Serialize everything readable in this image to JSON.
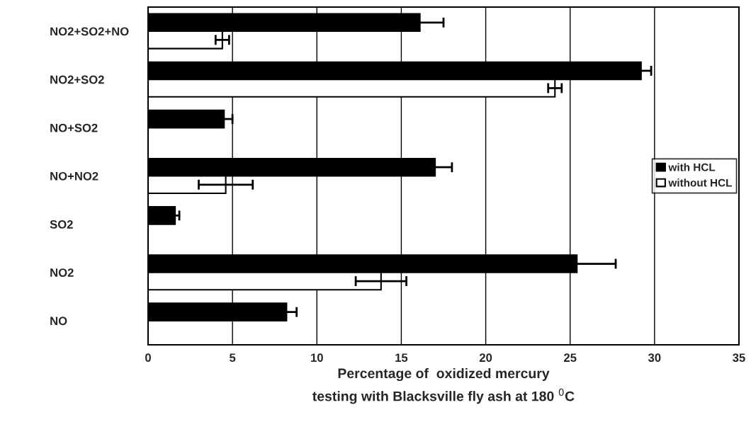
{
  "chart_data": {
    "type": "bar",
    "orientation": "horizontal",
    "categories": [
      "NO2+SO2+NO",
      "NO2+SO2",
      "NO+SO2",
      "NO+NO2",
      "SO2",
      "NO2",
      "NO"
    ],
    "series": [
      {
        "name": "with HCL",
        "color": "#000000",
        "values": [
          16.1,
          29.2,
          4.5,
          17.0,
          1.6,
          25.4,
          8.2
        ],
        "errors": [
          1.4,
          0.6,
          0.5,
          1.0,
          0.25,
          2.3,
          0.6
        ]
      },
      {
        "name": "without HCL",
        "color": "#ffffff",
        "values": [
          4.4,
          24.1,
          null,
          4.6,
          null,
          13.8,
          null
        ],
        "errors": [
          0.4,
          0.4,
          null,
          1.6,
          null,
          1.5,
          null
        ]
      }
    ],
    "xlabel": "Percentage of  oxidized mercury\ntesting with Blacksville fly ash at 180 $^{0}$C",
    "xlim": [
      0,
      35
    ],
    "xticks": [
      0,
      5,
      10,
      15,
      20,
      25,
      30,
      35
    ],
    "grid": "x",
    "legend": "right"
  }
}
